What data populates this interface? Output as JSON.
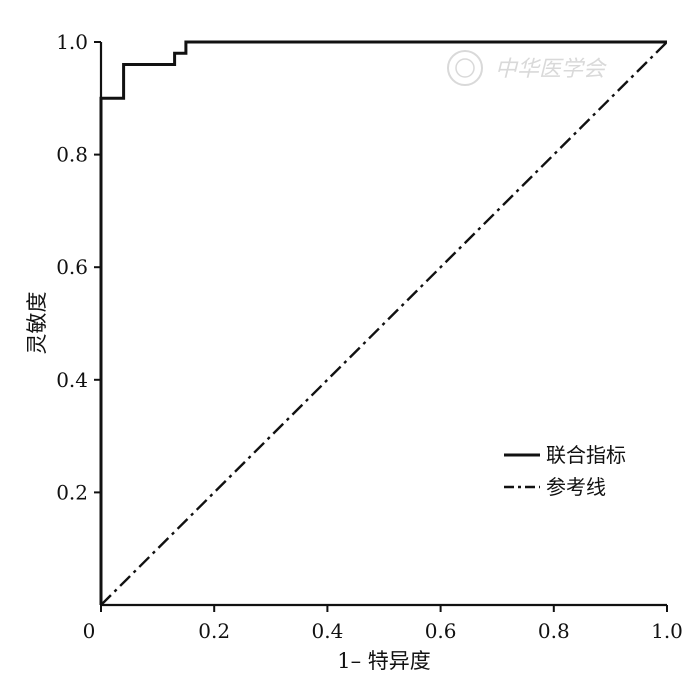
{
  "chart_data": {
    "type": "line",
    "title": "",
    "xlabel": "1– 特异度",
    "ylabel": "灵敏度",
    "xlim": [
      0,
      1.0
    ],
    "ylim": [
      0,
      1.0
    ],
    "x_ticks": [
      0,
      0.2,
      0.4,
      0.6,
      0.8,
      1.0
    ],
    "x_tick_labels": [
      "0",
      "0.2",
      "0.4",
      "0.6",
      "0.8",
      "1.0"
    ],
    "y_ticks": [
      0.2,
      0.4,
      0.6,
      0.8,
      1.0
    ],
    "y_tick_labels": [
      "0.2",
      "0.4",
      "0.6",
      "0.8",
      "1.0"
    ],
    "grid": false,
    "legend_position": "lower-right",
    "series": [
      {
        "name": "联合指标",
        "style": "solid",
        "x": [
          0,
          0,
          0.04,
          0.04,
          0.13,
          0.13,
          0.15,
          0.15,
          1.0
        ],
        "y": [
          0,
          0.9,
          0.9,
          0.96,
          0.96,
          0.98,
          0.98,
          1.0,
          1.0
        ]
      },
      {
        "name": "参考线",
        "style": "dash-dot",
        "x": [
          0,
          1.0
        ],
        "y": [
          0,
          1.0
        ]
      }
    ],
    "watermark": "中华医学会",
    "colors": {
      "line": "#111111",
      "watermark": "#d9d9d9"
    }
  }
}
